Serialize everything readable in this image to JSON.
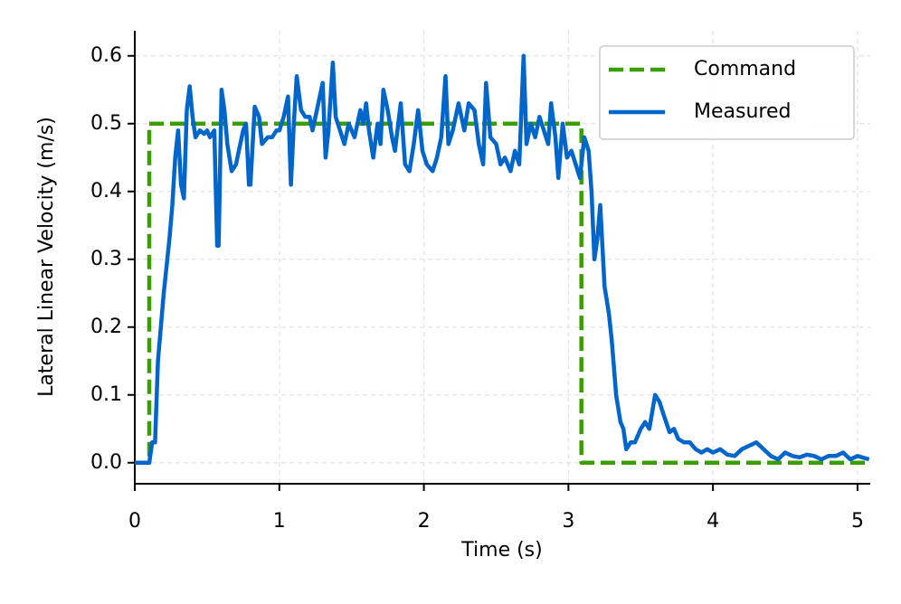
{
  "chart_data": {
    "type": "line",
    "xlabel": "Time (s)",
    "ylabel": "Lateral Linear Velocity (m/s)",
    "xlim": [
      0,
      5.088
    ],
    "ylim": [
      -0.031,
      0.637
    ],
    "xticks": [
      0,
      1,
      2,
      3,
      4,
      5
    ],
    "yticks": [
      {
        "value": 0,
        "label": "0.0"
      },
      0.1,
      0.2,
      0.3,
      0.4,
      0.5,
      0.6
    ],
    "grid": true,
    "legend": "upper right",
    "series": [
      {
        "name": "Command",
        "color": "#3a9d00",
        "style": "dashed",
        "x": [
          0,
          0.1,
          0.1,
          3.09,
          3.09,
          5.088
        ],
        "values": [
          0,
          0,
          0.5,
          0.5,
          0,
          0
        ]
      },
      {
        "name": "Measured",
        "color": "#0066cc",
        "style": "solid",
        "x": [
          0,
          0.08,
          0.1,
          0.12,
          0.14,
          0.16,
          0.2,
          0.24,
          0.26,
          0.28,
          0.3,
          0.32,
          0.34,
          0.36,
          0.38,
          0.4,
          0.42,
          0.45,
          0.48,
          0.5,
          0.52,
          0.55,
          0.57,
          0.58,
          0.6,
          0.62,
          0.64,
          0.67,
          0.7,
          0.72,
          0.75,
          0.77,
          0.79,
          0.8,
          0.83,
          0.86,
          0.88,
          0.92,
          0.95,
          0.98,
          1.0,
          1.03,
          1.06,
          1.08,
          1.1,
          1.12,
          1.15,
          1.18,
          1.21,
          1.23,
          1.26,
          1.3,
          1.32,
          1.34,
          1.37,
          1.39,
          1.42,
          1.45,
          1.48,
          1.52,
          1.56,
          1.58,
          1.6,
          1.62,
          1.65,
          1.68,
          1.7,
          1.72,
          1.75,
          1.78,
          1.8,
          1.84,
          1.87,
          1.9,
          1.93,
          1.96,
          1.99,
          2.02,
          2.06,
          2.09,
          2.12,
          2.15,
          2.17,
          2.2,
          2.24,
          2.28,
          2.31,
          2.35,
          2.38,
          2.41,
          2.43,
          2.46,
          2.5,
          2.53,
          2.56,
          2.6,
          2.63,
          2.66,
          2.69,
          2.71,
          2.74,
          2.77,
          2.8,
          2.83,
          2.86,
          2.88,
          2.91,
          2.93,
          2.96,
          2.99,
          3.02,
          3.05,
          3.08,
          3.11,
          3.14,
          3.16,
          3.18,
          3.2,
          3.22,
          3.25,
          3.28,
          3.3,
          3.33,
          3.36,
          3.38,
          3.4,
          3.43,
          3.46,
          3.5,
          3.53,
          3.56,
          3.6,
          3.63,
          3.66,
          3.7,
          3.73,
          3.76,
          3.8,
          3.84,
          3.88,
          3.92,
          3.96,
          4.0,
          4.05,
          4.1,
          4.15,
          4.2,
          4.25,
          4.3,
          4.35,
          4.4,
          4.45,
          4.5,
          4.55,
          4.6,
          4.65,
          4.7,
          4.75,
          4.8,
          4.85,
          4.9,
          4.95,
          5.0,
          5.08
        ],
        "values": [
          0,
          0,
          0,
          0.03,
          0.03,
          0.15,
          0.25,
          0.33,
          0.38,
          0.45,
          0.49,
          0.41,
          0.39,
          0.52,
          0.555,
          0.51,
          0.48,
          0.49,
          0.485,
          0.49,
          0.48,
          0.49,
          0.32,
          0.32,
          0.55,
          0.52,
          0.47,
          0.43,
          0.44,
          0.46,
          0.49,
          0.5,
          0.41,
          0.41,
          0.525,
          0.51,
          0.47,
          0.48,
          0.48,
          0.49,
          0.49,
          0.51,
          0.54,
          0.41,
          0.5,
          0.57,
          0.52,
          0.51,
          0.51,
          0.49,
          0.52,
          0.56,
          0.45,
          0.49,
          0.59,
          0.51,
          0.49,
          0.47,
          0.5,
          0.48,
          0.52,
          0.5,
          0.53,
          0.49,
          0.45,
          0.5,
          0.47,
          0.55,
          0.52,
          0.48,
          0.46,
          0.53,
          0.44,
          0.43,
          0.47,
          0.52,
          0.46,
          0.44,
          0.43,
          0.45,
          0.48,
          0.57,
          0.47,
          0.49,
          0.53,
          0.49,
          0.53,
          0.52,
          0.47,
          0.44,
          0.56,
          0.48,
          0.47,
          0.44,
          0.45,
          0.43,
          0.46,
          0.44,
          0.6,
          0.47,
          0.5,
          0.48,
          0.51,
          0.49,
          0.47,
          0.53,
          0.48,
          0.42,
          0.5,
          0.45,
          0.46,
          0.44,
          0.42,
          0.48,
          0.46,
          0.4,
          0.3,
          0.33,
          0.38,
          0.26,
          0.22,
          0.18,
          0.1,
          0.06,
          0.05,
          0.02,
          0.03,
          0.03,
          0.05,
          0.06,
          0.05,
          0.1,
          0.09,
          0.07,
          0.045,
          0.05,
          0.035,
          0.03,
          0.03,
          0.02,
          0.015,
          0.02,
          0.015,
          0.02,
          0.012,
          0.01,
          0.02,
          0.025,
          0.03,
          0.02,
          0.01,
          0.005,
          0.015,
          0.01,
          0.008,
          0.012,
          0.01,
          0.005,
          0.01,
          0.01,
          0.015,
          0.005,
          0.01,
          0.005
        ]
      }
    ]
  }
}
